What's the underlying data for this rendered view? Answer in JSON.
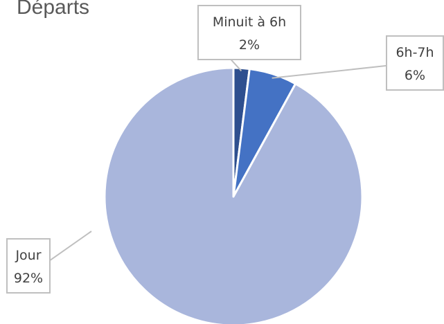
{
  "chart_data": {
    "type": "pie",
    "title": "Départs",
    "slices": [
      {
        "label": "Minuit à 6h",
        "value": 2,
        "value_label": "2%",
        "color": "#2e4f8f"
      },
      {
        "label": "6h-7h",
        "value": 6,
        "value_label": "6%",
        "color": "#4472c4"
      },
      {
        "label": "Jour",
        "value": 92,
        "value_label": "92%",
        "color": "#a9b6dc"
      }
    ],
    "start_angle_deg": 0,
    "direction": "clockwise",
    "legend": "none",
    "data_labels": "callouts"
  }
}
